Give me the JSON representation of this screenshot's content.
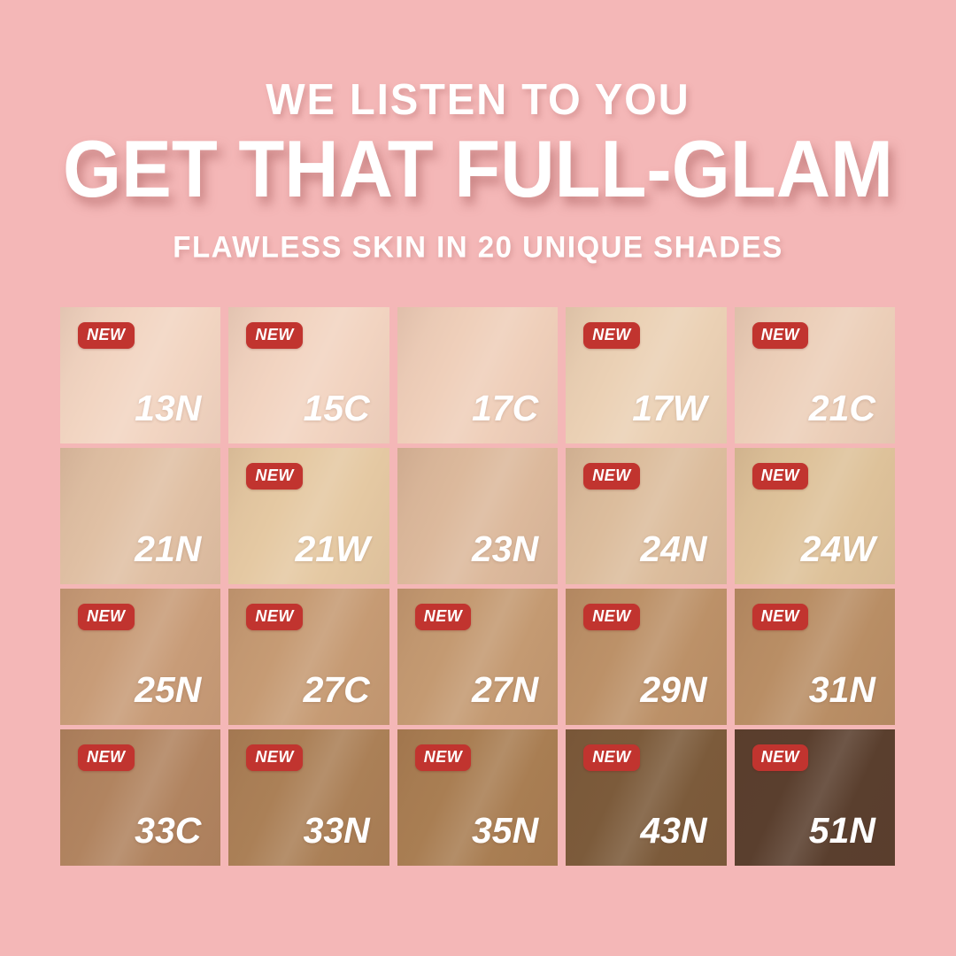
{
  "page": {
    "background": "#f4b7b7"
  },
  "header": {
    "line1": "WE LISTEN TO YOU",
    "line2": "GET THAT FULL-GLAM",
    "line3": "FLAWLESS SKIN IN 20 UNIQUE SHADES"
  },
  "badge": {
    "label": "NEW",
    "color": "#c1342f",
    "text_color": "#ffffff"
  },
  "grid": {
    "columns": 5,
    "shade_count": 20,
    "shades": [
      {
        "code": "13N",
        "color": "#f2d5c2",
        "new": true
      },
      {
        "code": "15C",
        "color": "#f2d4c1",
        "new": true
      },
      {
        "code": "17C",
        "color": "#efcfba",
        "new": false
      },
      {
        "code": "17W",
        "color": "#ebd1b5",
        "new": true
      },
      {
        "code": "21C",
        "color": "#eccfb9",
        "new": true
      },
      {
        "code": "21N",
        "color": "#e0c0a4",
        "new": false
      },
      {
        "code": "21W",
        "color": "#e5c9a3",
        "new": true
      },
      {
        "code": "23N",
        "color": "#dcb99c",
        "new": false
      },
      {
        "code": "24N",
        "color": "#dcbd9d",
        "new": true
      },
      {
        "code": "24W",
        "color": "#dec29a",
        "new": true
      },
      {
        "code": "25N",
        "color": "#c89c78",
        "new": true
      },
      {
        "code": "27C",
        "color": "#c69b74",
        "new": true
      },
      {
        "code": "27N",
        "color": "#c49a72",
        "new": true
      },
      {
        "code": "29N",
        "color": "#bc9168",
        "new": true
      },
      {
        "code": "31N",
        "color": "#b98e65",
        "new": true
      },
      {
        "code": "33C",
        "color": "#b18460",
        "new": true
      },
      {
        "code": "33N",
        "color": "#ab8057",
        "new": true
      },
      {
        "code": "35N",
        "color": "#a97e53",
        "new": true
      },
      {
        "code": "43N",
        "color": "#7c5b3b",
        "new": true
      },
      {
        "code": "51N",
        "color": "#5a3f2e",
        "new": true
      }
    ]
  }
}
